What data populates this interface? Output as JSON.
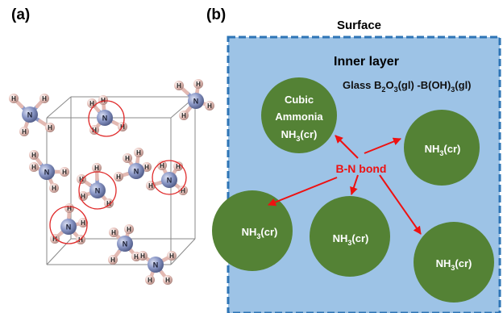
{
  "panel_a": {
    "label": "(a)",
    "atom_N": "N",
    "atom_H": "H"
  },
  "panel_b": {
    "label": "(b)",
    "surface_label": "Surface",
    "inner_layer_label": "Inner layer",
    "glass_label": {
      "p1": "Glass B",
      "s1": "2",
      "p2": "O",
      "s2": "3",
      "p3": "(gl) -B(OH)",
      "s3": "3",
      "p4": "(gl)"
    },
    "cubic_label": {
      "line1": "Cubic",
      "line2": "Ammonia"
    },
    "nh3_formula": {
      "a": "NH",
      "sub": "3",
      "b": "(cr)"
    },
    "bond_label": "B-N bond"
  },
  "colors": {
    "layer_fill": "#9dc3e6",
    "layer_border": "#2e75b6",
    "circle_fill": "#548235",
    "arrow": "#ee1111",
    "nitrogen": "#8c99c8",
    "hydrogen": "#e8c3bc",
    "highlight_ring": "#e02a2a"
  }
}
